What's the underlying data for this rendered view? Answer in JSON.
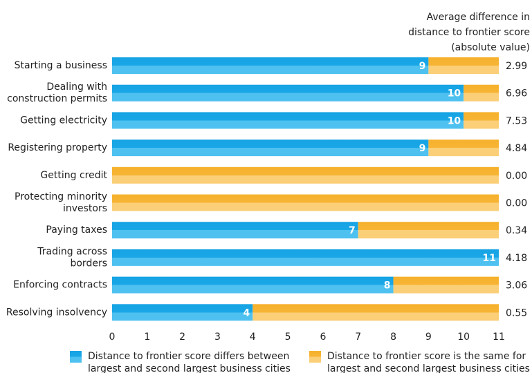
{
  "chart_data": {
    "type": "bar",
    "orientation": "horizontal",
    "stacked": true,
    "categories": [
      [
        "Starting a business"
      ],
      [
        "Dealing with",
        "construction permits"
      ],
      [
        "Getting electricity"
      ],
      [
        "Registering property"
      ],
      [
        "Getting credit"
      ],
      [
        "Protecting minority",
        "investors"
      ],
      [
        "Paying taxes"
      ],
      [
        "Trading across",
        "borders"
      ],
      [
        "Enforcing contracts"
      ],
      [
        "Resolving insolvency"
      ]
    ],
    "series": [
      {
        "name": [
          "Distance to frontier score differs between",
          "largest and second largest business cities"
        ],
        "color": "#1aa7e6",
        "values": [
          9,
          10,
          10,
          9,
          0,
          0,
          7,
          11,
          8,
          4
        ]
      },
      {
        "name": [
          "Distance to frontier score is the same for",
          "largest and second largest business cities"
        ],
        "color": "#f7b535",
        "values": [
          2,
          1,
          1,
          2,
          11,
          11,
          4,
          0,
          3,
          7
        ]
      }
    ],
    "right_column": {
      "header": [
        "Average difference in",
        "distance to frontier score",
        "(absolute value)"
      ],
      "values": [
        "2.99",
        "6.96",
        "7.53",
        "4.84",
        "0.00",
        "0.00",
        "0.34",
        "4.18",
        "3.06",
        "0.55"
      ]
    },
    "xticks": [
      "0",
      "1",
      "2",
      "3",
      "4",
      "5",
      "6",
      "7",
      "8",
      "9",
      "10",
      "11"
    ],
    "xlim": [
      0,
      11
    ],
    "grid": false,
    "legend_position": "bottom"
  }
}
